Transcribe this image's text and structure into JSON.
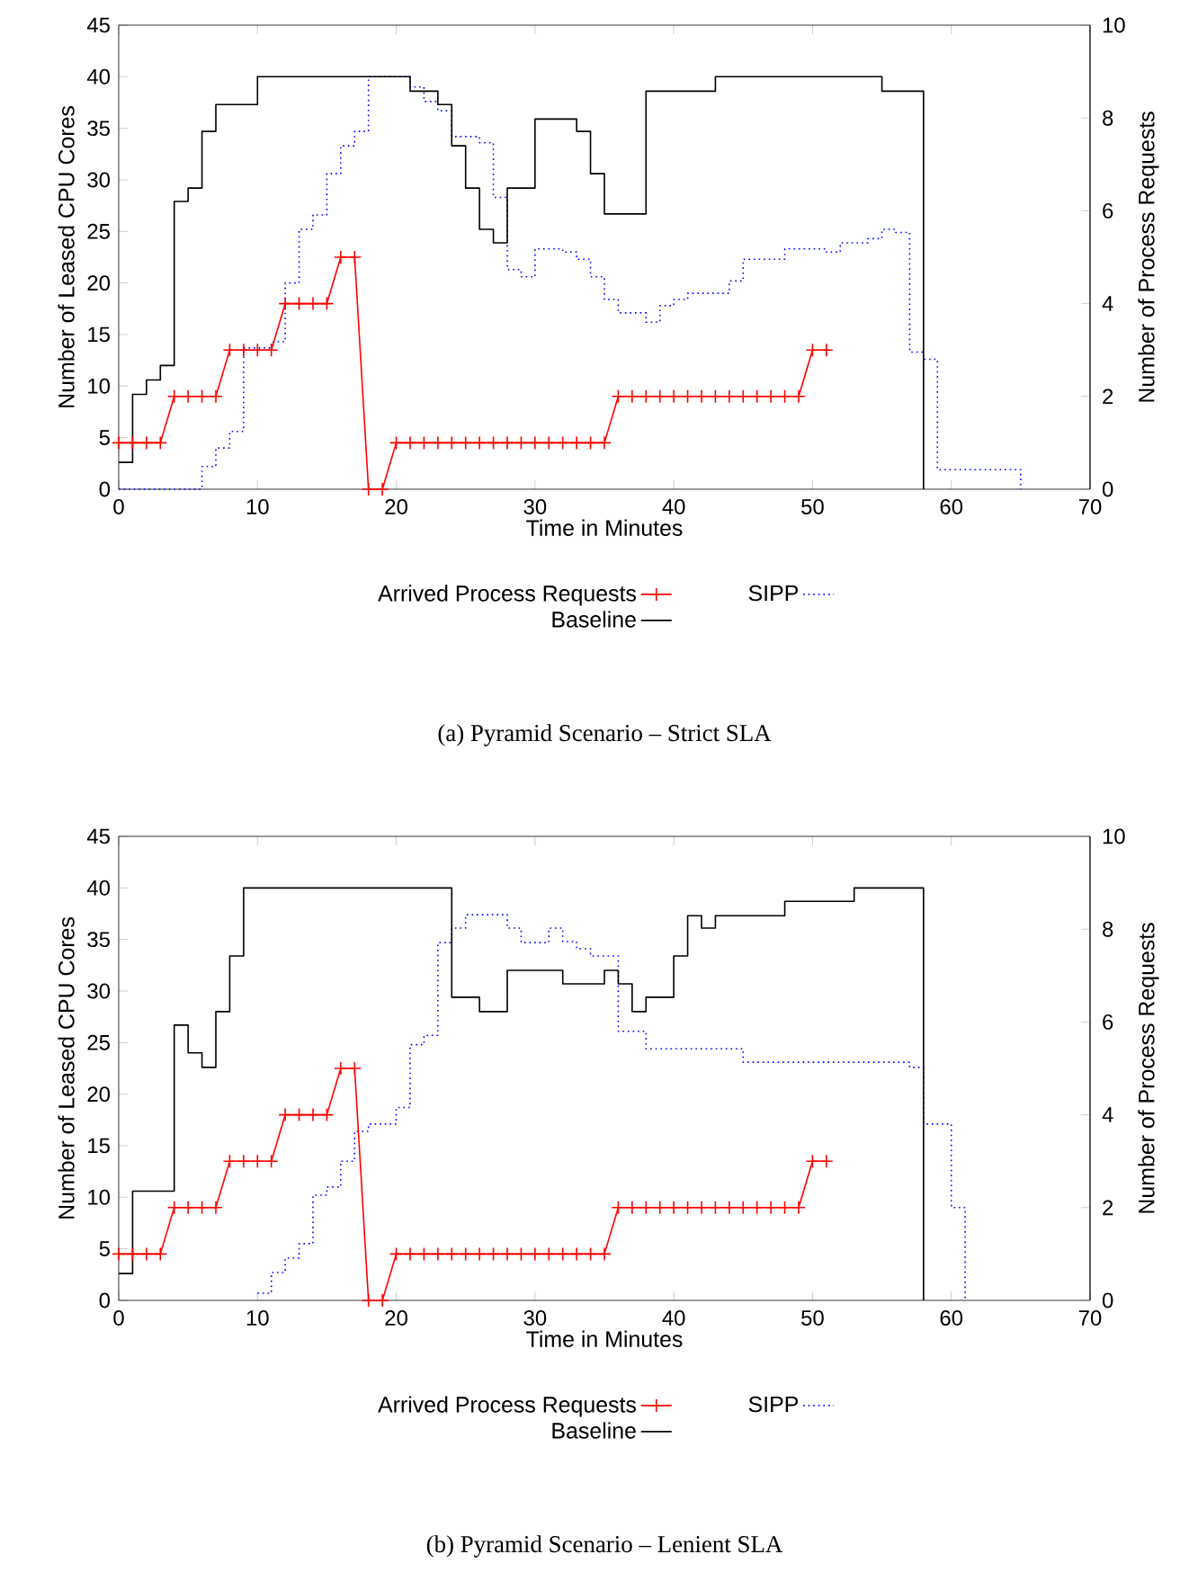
{
  "chart_data": [
    {
      "type": "line",
      "xlabel": "Time in Minutes",
      "ylabel": "Number of Leased CPU Cores",
      "y2label": "Number of Process Requests",
      "annotations": [
        "(a) Pyramid Scenario – Strict SLA"
      ],
      "xlim": [
        0,
        70
      ],
      "ylim": [
        0,
        45
      ],
      "y2lim": [
        0,
        10
      ],
      "xticks": [
        0,
        10,
        20,
        30,
        40,
        50,
        60,
        70
      ],
      "yticks": [
        0,
        5,
        10,
        15,
        20,
        25,
        30,
        35,
        40,
        45
      ],
      "y2ticks": [
        0,
        2,
        4,
        6,
        8,
        10
      ],
      "legend": "bottom",
      "series": [
        {
          "name": "Arrived Process Requests",
          "color": "#ff0000",
          "axis": "y2",
          "marker": "cross",
          "line_style": "solid",
          "x": [
            0,
            1,
            2,
            3,
            4,
            5,
            6,
            7,
            8,
            9,
            10,
            11,
            12,
            13,
            14,
            15,
            16,
            17,
            18,
            19,
            20,
            21,
            22,
            23,
            24,
            25,
            26,
            27,
            28,
            29,
            30,
            31,
            32,
            33,
            34,
            35,
            36,
            37,
            38,
            39,
            40,
            41,
            42,
            43,
            44,
            45,
            46,
            47,
            48,
            49,
            50,
            51
          ],
          "values": [
            1,
            1,
            1,
            1,
            2,
            2,
            2,
            2,
            3,
            3,
            3,
            3,
            4,
            4,
            4,
            4,
            5,
            5,
            0,
            0,
            1,
            1,
            1,
            1,
            1,
            1,
            1,
            1,
            1,
            1,
            1,
            1,
            1,
            1,
            1,
            1,
            2,
            2,
            2,
            2,
            2,
            2,
            2,
            2,
            2,
            2,
            2,
            2,
            2,
            2,
            3,
            3
          ]
        },
        {
          "name": "SIPP",
          "color": "#0000ff",
          "type": "step",
          "line_style": "dotted",
          "x": [
            0,
            6,
            7,
            8,
            9,
            11,
            12,
            13,
            14,
            15,
            16,
            17,
            18,
            21,
            22,
            23,
            24,
            26,
            27,
            28,
            29,
            30,
            32,
            33,
            34,
            35,
            36,
            38,
            39,
            40,
            41,
            44,
            45,
            48,
            51,
            52,
            54,
            55,
            56,
            57,
            58,
            59,
            65
          ],
          "values": [
            0,
            2.2,
            4.0,
            5.6,
            13.7,
            14.3,
            20.0,
            25.2,
            26.6,
            30.6,
            33.3,
            34.7,
            40,
            39.0,
            37.6,
            36.7,
            34.2,
            33.6,
            28.3,
            21.3,
            20.6,
            23.3,
            23.0,
            22.3,
            20.6,
            18.4,
            17.1,
            16.2,
            17.8,
            18.4,
            19.0,
            20.2,
            22.3,
            23.3,
            23.0,
            23.9,
            24.3,
            25.2,
            24.9,
            13.3,
            12.6,
            1.9,
            0
          ]
        },
        {
          "name": "Baseline",
          "color": "#000000",
          "type": "step",
          "line_style": "solid",
          "x": [
            0,
            1,
            2,
            3,
            4,
            5,
            6,
            7,
            10,
            21,
            23,
            24,
            25,
            26,
            27,
            28,
            30,
            33,
            34,
            35,
            38,
            43,
            55,
            58
          ],
          "values": [
            2.6,
            9.2,
            10.6,
            12,
            27.9,
            29.2,
            34.7,
            37.3,
            40,
            38.6,
            37.3,
            33.3,
            29.2,
            25.2,
            23.9,
            29.2,
            35.9,
            34.7,
            30.6,
            26.7,
            38.6,
            40,
            38.6,
            0
          ]
        }
      ]
    },
    {
      "type": "line",
      "xlabel": "Time in Minutes",
      "ylabel": "Number of Leased CPU Cores",
      "y2label": "Number of Process Requests",
      "annotations": [
        "(b) Pyramid Scenario – Lenient SLA"
      ],
      "xlim": [
        0,
        70
      ],
      "ylim": [
        0,
        45
      ],
      "y2lim": [
        0,
        10
      ],
      "xticks": [
        0,
        10,
        20,
        30,
        40,
        50,
        60,
        70
      ],
      "yticks": [
        0,
        5,
        10,
        15,
        20,
        25,
        30,
        35,
        40,
        45
      ],
      "y2ticks": [
        0,
        2,
        4,
        6,
        8,
        10
      ],
      "legend": "bottom",
      "series": [
        {
          "name": "Arrived Process Requests",
          "color": "#ff0000",
          "axis": "y2",
          "marker": "cross",
          "line_style": "solid",
          "x": [
            0,
            1,
            2,
            3,
            4,
            5,
            6,
            7,
            8,
            9,
            10,
            11,
            12,
            13,
            14,
            15,
            16,
            17,
            18,
            19,
            20,
            21,
            22,
            23,
            24,
            25,
            26,
            27,
            28,
            29,
            30,
            31,
            32,
            33,
            34,
            35,
            36,
            37,
            38,
            39,
            40,
            41,
            42,
            43,
            44,
            45,
            46,
            47,
            48,
            49,
            50,
            51
          ],
          "values": [
            1,
            1,
            1,
            1,
            2,
            2,
            2,
            2,
            3,
            3,
            3,
            3,
            4,
            4,
            4,
            4,
            5,
            5,
            0,
            0,
            1,
            1,
            1,
            1,
            1,
            1,
            1,
            1,
            1,
            1,
            1,
            1,
            1,
            1,
            1,
            1,
            2,
            2,
            2,
            2,
            2,
            2,
            2,
            2,
            2,
            2,
            2,
            2,
            2,
            2,
            3,
            3
          ]
        },
        {
          "name": "SIPP",
          "color": "#0000ff",
          "type": "step",
          "line_style": "dotted",
          "x": [
            10,
            11,
            12,
            13,
            14,
            15,
            16,
            17,
            18,
            20,
            21,
            22,
            23,
            24,
            25,
            28,
            29,
            31,
            32,
            33,
            34,
            36,
            38,
            45,
            57,
            58,
            60,
            61
          ],
          "values": [
            0.7,
            2.7,
            4.1,
            5.5,
            10.2,
            11.0,
            13.5,
            16.4,
            17.1,
            18.7,
            24.8,
            25.7,
            34.7,
            36.1,
            37.4,
            36.1,
            34.7,
            36.1,
            34.8,
            34.1,
            33.4,
            26.1,
            24.4,
            23.1,
            22.6,
            17.1,
            9.0,
            0
          ]
        },
        {
          "name": "Baseline",
          "color": "#000000",
          "type": "step",
          "line_style": "solid",
          "x": [
            0,
            1,
            4,
            5,
            6,
            7,
            8,
            9,
            24,
            26,
            28,
            32,
            35,
            36,
            37,
            38,
            40,
            41,
            42,
            43,
            48,
            53,
            58
          ],
          "values": [
            2.6,
            10.6,
            26.7,
            24.0,
            22.6,
            28.0,
            33.4,
            40,
            29.4,
            28.0,
            32.0,
            30.7,
            32.0,
            30.7,
            28.0,
            29.4,
            33.4,
            37.3,
            36.1,
            37.3,
            38.7,
            40,
            0
          ]
        }
      ]
    }
  ]
}
